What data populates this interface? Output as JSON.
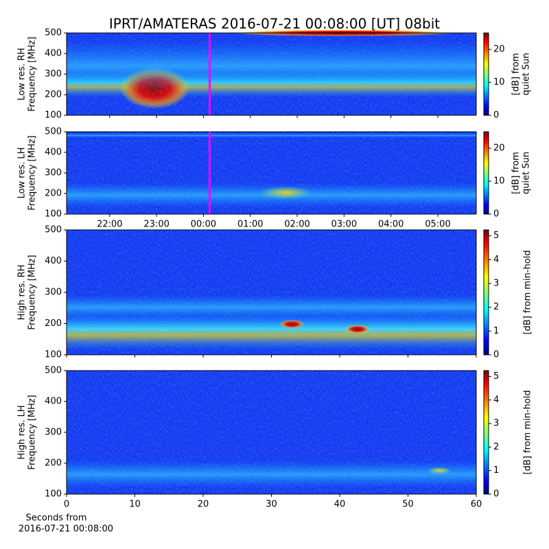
{
  "title": "IPRT/AMATERAS 2016-07-21 00:08:00 [UT]   08bit",
  "xlabel": [
    "Seconds from",
    "2016-07-21 00:08:00"
  ],
  "chart_data": [
    {
      "type": "heatmap",
      "ylabel": [
        "Low res. RH",
        "Frequency [MHz]"
      ],
      "ylim": [
        100,
        500
      ],
      "yticks": [
        100,
        200,
        300,
        400,
        500
      ],
      "xlim": [
        21.08,
        29.82
      ],
      "xticks": [
        {
          "value": 22,
          "label": "22:00"
        },
        {
          "value": 23,
          "label": "23:00"
        },
        {
          "value": 24,
          "label": "00:00"
        },
        {
          "value": 25,
          "label": "01:00"
        },
        {
          "value": 26,
          "label": "02:00"
        },
        {
          "value": 27,
          "label": "03:00"
        },
        {
          "value": 28,
          "label": "04:00"
        },
        {
          "value": 29,
          "label": "05:00"
        }
      ],
      "show_xtick_labels": false,
      "marker_x": 24.133,
      "marker_color": "#ff00ff",
      "colorbar_label": [
        "[dB] from",
        "quiet Sun"
      ],
      "clim": [
        0,
        25
      ],
      "cticks": [
        0,
        10,
        20
      ]
    },
    {
      "type": "heatmap",
      "ylabel": [
        "Low res. LH",
        "Frequency [MHz]"
      ],
      "ylim": [
        100,
        500
      ],
      "yticks": [
        100,
        200,
        300,
        400,
        500
      ],
      "xlim": [
        21.08,
        29.82
      ],
      "xticks": [
        {
          "value": 22,
          "label": "22:00"
        },
        {
          "value": 23,
          "label": "23:00"
        },
        {
          "value": 24,
          "label": "00:00"
        },
        {
          "value": 25,
          "label": "01:00"
        },
        {
          "value": 26,
          "label": "02:00"
        },
        {
          "value": 27,
          "label": "03:00"
        },
        {
          "value": 28,
          "label": "04:00"
        },
        {
          "value": 29,
          "label": "05:00"
        }
      ],
      "show_xtick_labels": true,
      "marker_x": 24.133,
      "marker_color": "#ff00ff",
      "colorbar_label": [
        "[dB] from",
        "quiet Sun"
      ],
      "clim": [
        0,
        25
      ],
      "cticks": [
        0,
        10,
        20
      ]
    },
    {
      "type": "heatmap",
      "ylabel": [
        "High res. RH",
        "Frequency [MHz]"
      ],
      "ylim": [
        100,
        500
      ],
      "yticks": [
        100,
        200,
        300,
        400,
        500
      ],
      "xlim": [
        0,
        60
      ],
      "xticks": [
        0,
        10,
        20,
        30,
        40,
        50,
        60
      ],
      "show_xtick_labels": false,
      "colorbar_label": [
        "[dB] from min-hold"
      ],
      "clim": [
        0,
        5.25
      ],
      "cticks": [
        0,
        1,
        2,
        3,
        4,
        5
      ]
    },
    {
      "type": "heatmap",
      "ylabel": [
        "High res. LH",
        "Frequency [MHz]"
      ],
      "ylim": [
        100,
        500
      ],
      "yticks": [
        100,
        200,
        300,
        400,
        500
      ],
      "xlim": [
        0,
        60
      ],
      "xticks": [
        0,
        10,
        20,
        30,
        40,
        50,
        60
      ],
      "show_xtick_labels": true,
      "colorbar_label": [
        "[dB] from min-hold"
      ],
      "clim": [
        0,
        5.25
      ],
      "cticks": [
        0,
        1,
        2,
        3,
        4,
        5
      ]
    }
  ]
}
